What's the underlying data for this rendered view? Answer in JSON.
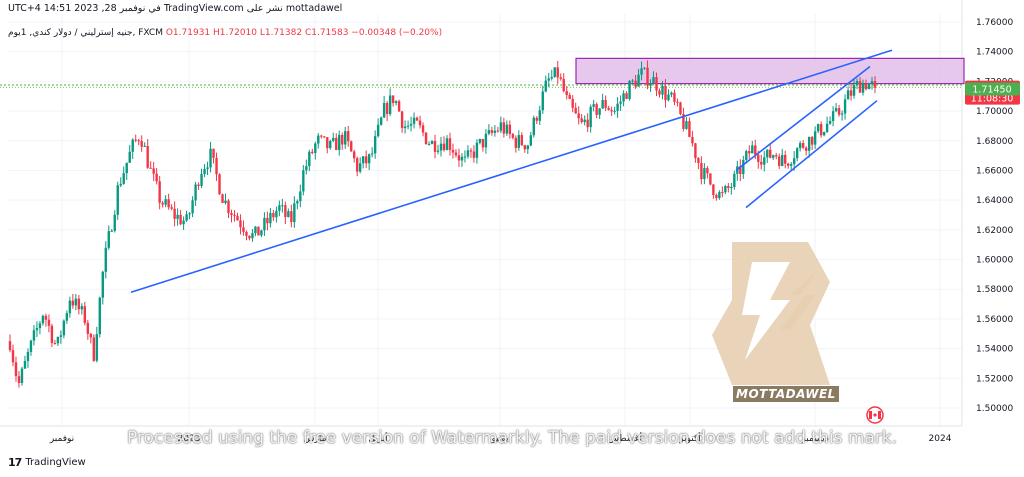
{
  "header": {
    "text": "mottadawel نشر على TradingView.com في نوفمبر 28, 2023 14:51 UTC+4",
    "symbol": "جنيه إسترليني / دولار كندي, 1يوم, FXCM",
    "ohlc": "O1.71931  H1.72010  L1.71382  C1.71583  −0.00348 (−0.20%)"
  },
  "watermark": {
    "brand": "MOTTADAWEL",
    "processed_text": "Processed using the free version of Watermarkly. The paid version does not add this mark."
  },
  "footer": {
    "brand": "TradingView",
    "logo": "17"
  },
  "colors": {
    "up": "#089981",
    "down": "#f23645",
    "trendline": "#2962ff",
    "zone_fill": "#e1bee7",
    "zone_border": "#9c27b0",
    "dotted_line": "#4caf50",
    "price_label": "#f23645",
    "support_label": "#4caf50"
  },
  "chart_data": {
    "type": "candlestick",
    "title": "",
    "y_ticks": [
      "1.76000",
      "1.74000",
      "1.72000",
      "1.70000",
      "1.68000",
      "1.66000",
      "1.64000",
      "1.62000",
      "1.60000",
      "1.58000",
      "1.56000",
      "1.54000",
      "1.52000",
      "1.50000"
    ],
    "ylim": [
      1.495,
      1.762
    ],
    "x_ticks": [
      "نوفمبر",
      "2023",
      "مارس",
      "أبريل",
      "يونيو",
      "أغسطس",
      "أكتوبر",
      "ديسمبر",
      "2024"
    ],
    "current_price": "1.71583",
    "countdown": "11:08:30",
    "support_level": "1.71450",
    "resistance_zone": [
      1.7185,
      1.7355
    ],
    "candle_path": [
      [
        0,
        1.545
      ],
      [
        5,
        1.515
      ],
      [
        12,
        1.54
      ],
      [
        20,
        1.565
      ],
      [
        28,
        1.54
      ],
      [
        36,
        1.575
      ],
      [
        45,
        1.56
      ],
      [
        50,
        1.535
      ],
      [
        56,
        1.595
      ],
      [
        65,
        1.65
      ],
      [
        73,
        1.675
      ],
      [
        78,
        1.685
      ],
      [
        84,
        1.66
      ],
      [
        90,
        1.64
      ],
      [
        98,
        1.63
      ],
      [
        106,
        1.625
      ],
      [
        114,
        1.66
      ],
      [
        120,
        1.67
      ],
      [
        128,
        1.64
      ],
      [
        138,
        1.625
      ],
      [
        146,
        1.615
      ],
      [
        154,
        1.625
      ],
      [
        161,
        1.635
      ],
      [
        168,
        1.625
      ],
      [
        176,
        1.66
      ],
      [
        184,
        1.68
      ],
      [
        192,
        1.675
      ],
      [
        200,
        1.683
      ],
      [
        208,
        1.662
      ],
      [
        216,
        1.668
      ],
      [
        224,
        1.7
      ],
      [
        230,
        1.71
      ],
      [
        236,
        1.69
      ],
      [
        244,
        1.69
      ],
      [
        252,
        1.678
      ],
      [
        262,
        1.68
      ],
      [
        272,
        1.665
      ],
      [
        282,
        1.678
      ],
      [
        294,
        1.69
      ],
      [
        302,
        1.68
      ],
      [
        310,
        1.678
      ],
      [
        316,
        1.7
      ],
      [
        322,
        1.72
      ],
      [
        328,
        1.725
      ],
      [
        334,
        1.705
      ],
      [
        342,
        1.69
      ],
      [
        350,
        1.7
      ],
      [
        356,
        1.705
      ],
      [
        362,
        1.7
      ],
      [
        370,
        1.715
      ],
      [
        378,
        1.725
      ],
      [
        386,
        1.72
      ],
      [
        392,
        1.712
      ],
      [
        396,
        1.708
      ],
      [
        402,
        1.695
      ],
      [
        408,
        1.68
      ],
      [
        414,
        1.66
      ],
      [
        420,
        1.65
      ],
      [
        426,
        1.642
      ],
      [
        432,
        1.65
      ],
      [
        438,
        1.662
      ],
      [
        444,
        1.675
      ],
      [
        452,
        1.668
      ],
      [
        458,
        1.672
      ],
      [
        464,
        1.665
      ],
      [
        472,
        1.675
      ],
      [
        480,
        1.682
      ],
      [
        488,
        1.69
      ],
      [
        496,
        1.698
      ],
      [
        502,
        1.71
      ],
      [
        508,
        1.718
      ],
      [
        513,
        1.719
      ],
      [
        518,
        1.7158
      ]
    ]
  }
}
